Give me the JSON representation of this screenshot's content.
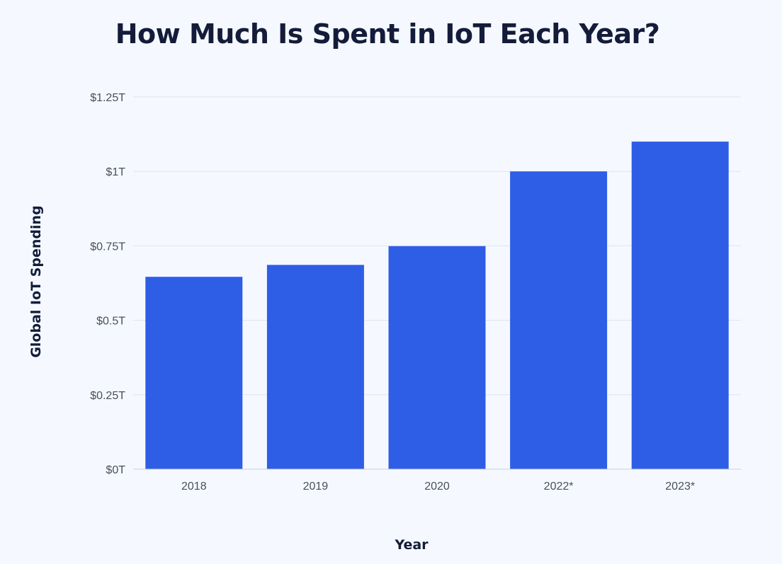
{
  "chart_data": {
    "type": "bar",
    "title": "How Much Is Spent in IoT Each Year?",
    "xlabel": "Year",
    "ylabel": "Global IoT Spending",
    "categories": [
      "2018",
      "2019",
      "2020",
      "2022*",
      "2023*"
    ],
    "values": [
      0.646,
      0.686,
      0.749,
      1.0,
      1.1
    ],
    "unit": "trillion USD",
    "ylim": [
      0,
      1.25
    ],
    "y_ticks": [
      0,
      0.25,
      0.5,
      0.75,
      1.0,
      1.25
    ],
    "y_tick_labels": [
      "$0T",
      "$0.25T",
      "$0.5T",
      "$0.75T",
      "$1T",
      "$1.25T"
    ],
    "grid": true,
    "legend": "none",
    "bar_color": "#2f5ee6"
  }
}
